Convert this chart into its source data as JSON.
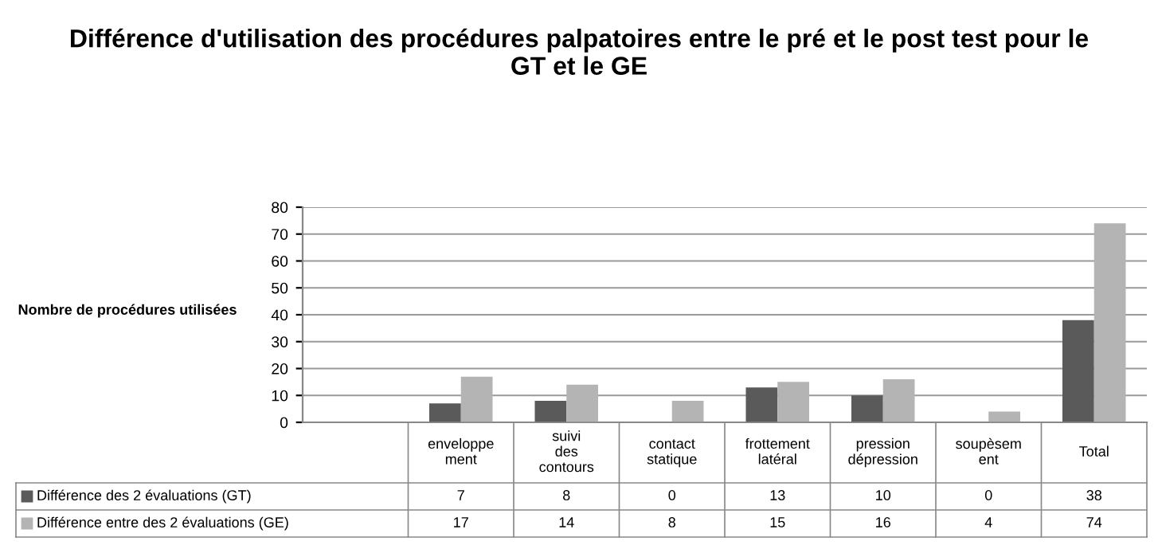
{
  "chart_data": {
    "type": "bar",
    "title": "Différence d'utilisation des procédures palpatoires entre le pré et le post test pour le GT et le GE",
    "ylabel": "Nombre de procédures utilisées",
    "categories": [
      "enveloppe ment",
      "suivi des contours",
      "contact statique",
      "frottement latéral",
      "pression dépression",
      "soupèsem ent",
      "Total"
    ],
    "series": [
      {
        "name": "Différence des 2 évaluations (GT)",
        "color": "#5a5a5a",
        "values": [
          7,
          8,
          0,
          13,
          10,
          0,
          38
        ]
      },
      {
        "name": "Différence entre des 2 évaluations (GE)",
        "color": "#b4b4b4",
        "values": [
          17,
          14,
          8,
          15,
          16,
          4,
          74
        ]
      }
    ],
    "ylim": [
      0,
      80
    ],
    "yticks": [
      0,
      10,
      20,
      30,
      40,
      50,
      60,
      70,
      80
    ],
    "grid": "y",
    "legend": "bottom",
    "data_labels": true
  }
}
